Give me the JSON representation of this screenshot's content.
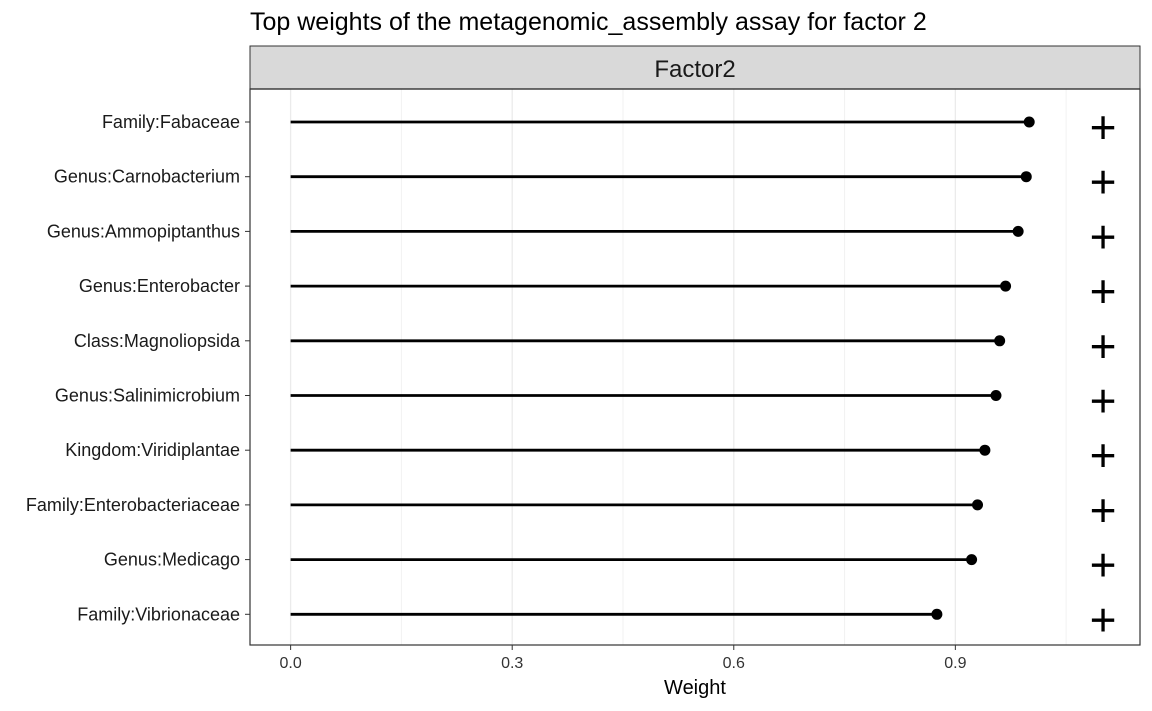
{
  "chart_data": {
    "type": "lollipop",
    "title": "Top weights of the metagenomic_assembly assay for factor 2",
    "facet": "Factor2",
    "xlabel": "Weight",
    "ylabel": "",
    "xlim": [
      -0.055,
      1.15
    ],
    "xticks": [
      0.0,
      0.3,
      0.6,
      0.9
    ],
    "xtick_labels": [
      "0.0",
      "0.3",
      "0.6",
      "0.9"
    ],
    "grid": true,
    "categories": [
      "Family:Fabaceae",
      "Genus:Carnobacterium",
      "Genus:Ammopiptanthus",
      "Genus:Enterobacter",
      "Class:Magnoliopsida",
      "Genus:Salinimicrobium",
      "Kingdom:Viridiplantae",
      "Family:Enterobacteriaceae",
      "Genus:Medicago",
      "Family:Vibrionaceae"
    ],
    "values": [
      1.0,
      0.996,
      0.985,
      0.968,
      0.96,
      0.955,
      0.94,
      0.93,
      0.922,
      0.875
    ],
    "signs": [
      "+",
      "+",
      "+",
      "+",
      "+",
      "+",
      "+",
      "+",
      "+",
      "+"
    ],
    "sign_position": 1.1
  }
}
